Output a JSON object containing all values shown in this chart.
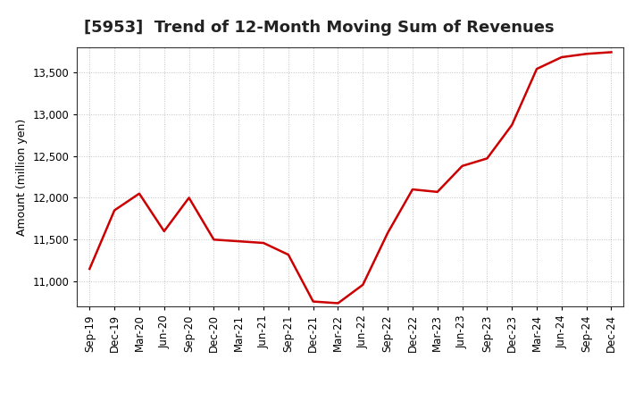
{
  "title": "[5953]  Trend of 12-Month Moving Sum of Revenues",
  "ylabel": "Amount (million yen)",
  "line_color": "#cc0000",
  "background_color": "#ffffff",
  "plot_bg_color": "#ffffff",
  "grid_color": "#999999",
  "x_labels": [
    "Sep-19",
    "Dec-19",
    "Mar-20",
    "Jun-20",
    "Sep-20",
    "Dec-20",
    "Mar-21",
    "Jun-21",
    "Sep-21",
    "Dec-21",
    "Mar-22",
    "Jun-22",
    "Sep-22",
    "Dec-22",
    "Mar-23",
    "Jun-23",
    "Sep-23",
    "Dec-23",
    "Mar-24",
    "Jun-24",
    "Sep-24",
    "Dec-24"
  ],
  "y_values": [
    11150,
    11850,
    12050,
    11600,
    12000,
    11500,
    11480,
    11460,
    11320,
    10760,
    10740,
    10960,
    11580,
    12100,
    12070,
    12380,
    12470,
    12870,
    13540,
    13680,
    13720,
    13740
  ],
  "ylim": [
    10700,
    13800
  ],
  "yticks": [
    11000,
    11500,
    12000,
    12500,
    13000,
    13500
  ],
  "title_fontsize": 13,
  "label_fontsize": 9,
  "tick_fontsize": 8.5
}
